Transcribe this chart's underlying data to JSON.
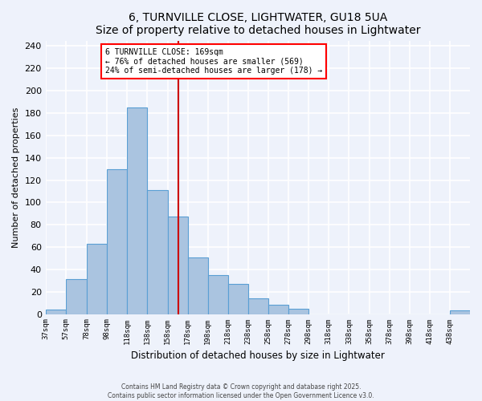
{
  "title": "6, TURNVILLE CLOSE, LIGHTWATER, GU18 5UA",
  "subtitle": "Size of property relative to detached houses in Lightwater",
  "xlabel": "Distribution of detached houses by size in Lightwater",
  "ylabel": "Number of detached properties",
  "bar_color": "#aac4e0",
  "bar_edge_color": "#5a9fd4",
  "background_color": "#eef2fb",
  "grid_color": "#ffffff",
  "bin_labels": [
    "37sqm",
    "57sqm",
    "78sqm",
    "98sqm",
    "118sqm",
    "138sqm",
    "158sqm",
    "178sqm",
    "198sqm",
    "218sqm",
    "238sqm",
    "258sqm",
    "278sqm",
    "298sqm",
    "318sqm",
    "338sqm",
    "358sqm",
    "378sqm",
    "398sqm",
    "418sqm",
    "438sqm"
  ],
  "bin_edges": [
    37,
    57,
    78,
    98,
    118,
    138,
    158,
    178,
    198,
    218,
    238,
    258,
    278,
    298,
    318,
    338,
    358,
    378,
    398,
    418,
    438,
    458
  ],
  "bar_heights": [
    4,
    31,
    63,
    130,
    185,
    111,
    87,
    51,
    35,
    27,
    14,
    8,
    5,
    0,
    0,
    0,
    0,
    0,
    0,
    0,
    3
  ],
  "property_size": 169,
  "annotation_box_text": "6 TURNVILLE CLOSE: 169sqm\n← 76% of detached houses are smaller (569)\n24% of semi-detached houses are larger (178) →",
  "ylim": [
    0,
    245
  ],
  "yticks": [
    0,
    20,
    40,
    60,
    80,
    100,
    120,
    140,
    160,
    180,
    200,
    220,
    240
  ],
  "footer_line1": "Contains HM Land Registry data © Crown copyright and database right 2025.",
  "footer_line2": "Contains public sector information licensed under the Open Government Licence v3.0."
}
